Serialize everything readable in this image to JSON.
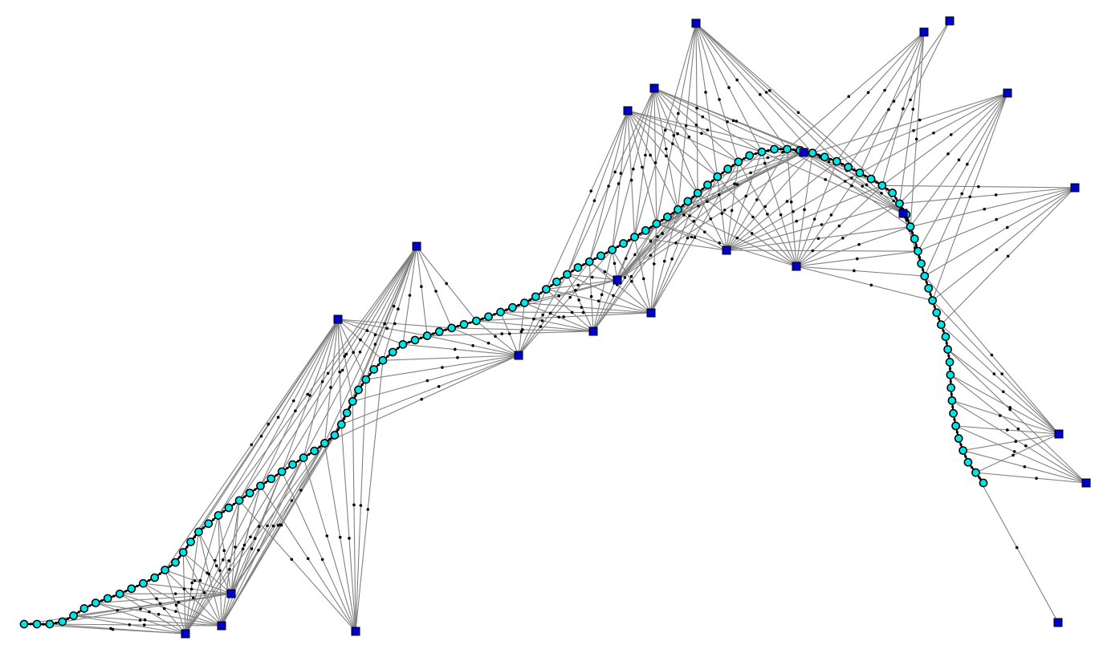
{
  "graph": {
    "landmark_color": "#0000cc",
    "path_node_color": "#00e5e5",
    "edge_color": "#808080",
    "point_color": "#000000",
    "landmark_count": 24,
    "path_node_count": 106
  }
}
